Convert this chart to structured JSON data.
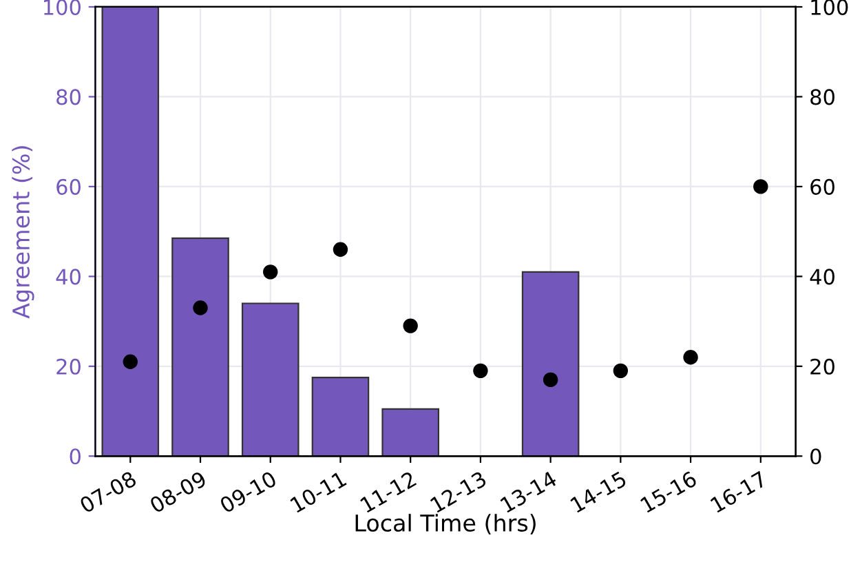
{
  "chart_data": {
    "type": "bar",
    "xlabel": "Local Time (hrs)",
    "ylabel": "Agreement (%)",
    "categories": [
      "07-08",
      "08-09",
      "09-10",
      "10-11",
      "11-12",
      "12-13",
      "13-14",
      "14-15",
      "15-16",
      "16-17"
    ],
    "series": [
      {
        "color": "#7357bb",
        "values": [
          100,
          48.5,
          34,
          17.5,
          10.5,
          null,
          41,
          null,
          null,
          null
        ]
      },
      {
        "type": "scatter",
        "axis": "y2",
        "color": "#000000",
        "marker": "circle",
        "values": [
          21,
          33,
          41,
          46,
          29,
          19,
          17,
          19,
          22,
          60
        ]
      }
    ],
    "ylim": [
      0,
      100
    ],
    "yticks": [
      0,
      20,
      40,
      60,
      80,
      100
    ],
    "y2lim": [
      0,
      100
    ],
    "y2ticks": [
      0,
      20,
      40,
      60,
      80,
      100
    ],
    "grid": true
  }
}
